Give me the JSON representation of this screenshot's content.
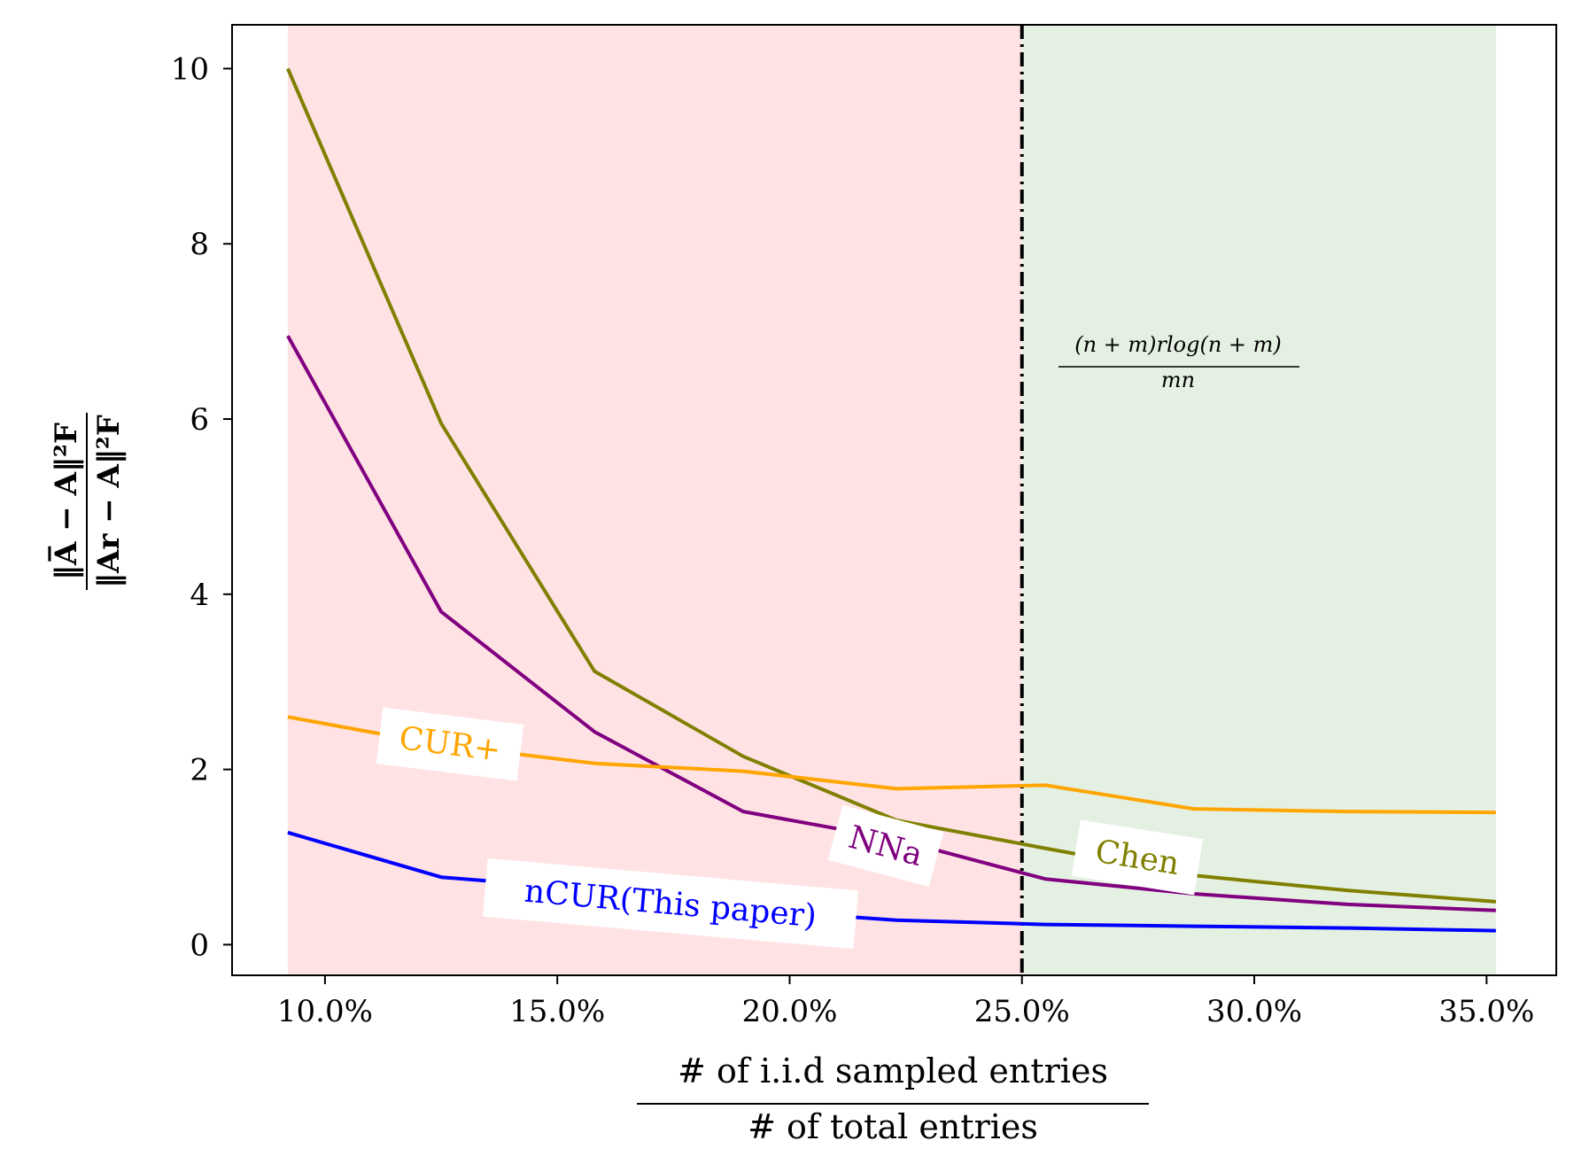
{
  "chart_data": {
    "type": "line",
    "x_unit": "percent",
    "x": [
      9.2,
      12.5,
      15.8,
      19.0,
      22.3,
      25.5,
      28.7,
      32.0,
      35.2
    ],
    "series": [
      {
        "name": "Chen",
        "color": "#808000",
        "values": [
          10.0,
          5.95,
          3.12,
          2.15,
          1.42,
          1.1,
          0.79,
          0.62,
          0.49
        ]
      },
      {
        "name": "NNa",
        "color": "#800080",
        "values": [
          6.95,
          3.8,
          2.43,
          1.52,
          1.2,
          0.75,
          0.58,
          0.46,
          0.39
        ]
      },
      {
        "name": "CUR+",
        "color": "#FFA500",
        "values": [
          2.6,
          2.28,
          2.07,
          1.98,
          1.78,
          1.82,
          1.55,
          1.52,
          1.51
        ]
      },
      {
        "name": "nCUR(This paper)",
        "color": "#0000FF",
        "values": [
          1.28,
          0.77,
          0.63,
          0.4,
          0.28,
          0.23,
          0.21,
          0.19,
          0.16
        ]
      }
    ],
    "xlim": [
      8.0,
      36.5
    ],
    "ylim": [
      -0.35,
      10.5
    ],
    "xticks": [
      "10.0%",
      "15.0%",
      "20.0%",
      "25.0%",
      "30.0%",
      "35.0%"
    ],
    "xtick_values": [
      10,
      15,
      20,
      25,
      30,
      35
    ],
    "yticks": [
      "0",
      "2",
      "4",
      "6",
      "8",
      "10"
    ],
    "ytick_values": [
      0,
      2,
      4,
      6,
      8,
      10
    ],
    "xlabel_numerator": "# of i.i.d sampled entries",
    "xlabel_denominator": "# of total entries",
    "ylabel_numerator": "‖A̅ − A‖²F",
    "ylabel_denominator": "‖Ar − A‖²F",
    "threshold": {
      "x": 25.0,
      "color": "#000000"
    },
    "threshold_annotation_numerator": "(n + m)rlog(n + m)",
    "threshold_annotation_denominator": "mn",
    "regions": [
      {
        "from": 9.2,
        "to": 25.0,
        "color": "#FFE2E4"
      },
      {
        "from": 25.0,
        "to": 35.2,
        "color": "#E4F0E2"
      }
    ],
    "inline_labels": [
      {
        "series": "CUR+",
        "text": "CUR+"
      },
      {
        "series": "NNa",
        "text": "NNa"
      },
      {
        "series": "Chen",
        "text": "Chen"
      },
      {
        "series": "nCUR(This paper)",
        "text": "nCUR(This paper)"
      }
    ],
    "grid": false,
    "legend": "inline"
  }
}
